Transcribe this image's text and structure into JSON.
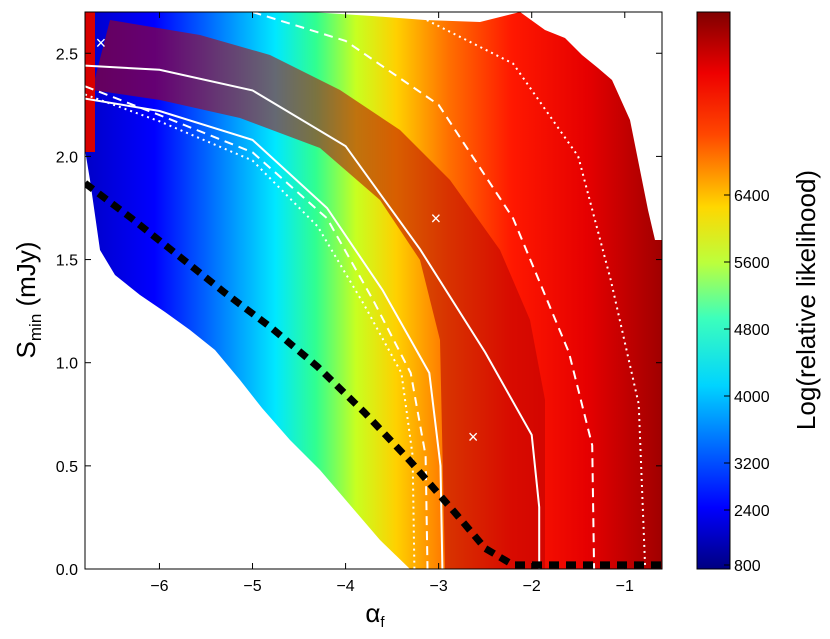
{
  "chart_data": {
    "type": "heatmap",
    "title": "",
    "xlabel": "α",
    "xlabel_sub": "f",
    "ylabel": "S",
    "ylabel_sub": "min",
    "ylabel_unit": " (mJy)",
    "xlim": [
      -6.8,
      -0.6
    ],
    "ylim": [
      0.0,
      2.7
    ],
    "x_ticks": [
      -6,
      -5,
      -4,
      -3,
      -2,
      -1
    ],
    "x_tick_labels": [
      "−6",
      "−5",
      "−4",
      "−3",
      "−2",
      "−1"
    ],
    "y_ticks": [
      0.0,
      0.5,
      1.0,
      1.5,
      2.0,
      2.5
    ],
    "y_tick_labels": [
      "0.0",
      "0.5",
      "1.0",
      "1.5",
      "2.0",
      "2.5"
    ],
    "colorbar": {
      "label": "Log(relative likelihood)",
      "ticks": [
        800,
        2400,
        3200,
        4000,
        4800,
        5600,
        6400
      ],
      "tick_labels": [
        "800",
        "2400",
        "3200",
        "4000",
        "4800",
        "5600",
        "6400"
      ],
      "colormap": "jet"
    },
    "markers": [
      {
        "symbol": "×",
        "x": -6.63,
        "y": 2.55
      },
      {
        "symbol": "×",
        "x": -3.03,
        "y": 1.7
      },
      {
        "symbol": "×",
        "x": -2.63,
        "y": 0.64
      }
    ],
    "boundary_curve": {
      "style": "black dashed",
      "points": [
        [
          -6.8,
          1.87
        ],
        [
          -6.3,
          1.7
        ],
        [
          -5.8,
          1.52
        ],
        [
          -5.3,
          1.34
        ],
        [
          -4.8,
          1.17
        ],
        [
          -4.3,
          0.98
        ],
        [
          -3.8,
          0.76
        ],
        [
          -3.3,
          0.52
        ],
        [
          -2.8,
          0.26
        ],
        [
          -2.5,
          0.1
        ],
        [
          -2.2,
          0.02
        ],
        [
          -0.6,
          0.02
        ]
      ]
    },
    "contours": [
      {
        "style": "white solid",
        "points": [
          [
            -6.8,
            2.44
          ],
          [
            -6.0,
            2.42
          ],
          [
            -5.0,
            2.32
          ],
          [
            -4.0,
            2.05
          ],
          [
            -3.2,
            1.55
          ],
          [
            -2.5,
            1.05
          ],
          [
            -2.0,
            0.65
          ],
          [
            -1.92,
            0.3
          ],
          [
            -1.92,
            0.0
          ]
        ]
      },
      {
        "style": "white dashed",
        "points": [
          [
            -5.0,
            2.7
          ],
          [
            -4.0,
            2.56
          ],
          [
            -3.0,
            2.25
          ],
          [
            -2.2,
            1.7
          ],
          [
            -1.6,
            1.05
          ],
          [
            -1.35,
            0.6
          ],
          [
            -1.33,
            0.0
          ]
        ]
      },
      {
        "style": "white dotted",
        "points": [
          [
            -3.3,
            2.7
          ],
          [
            -2.2,
            2.45
          ],
          [
            -1.5,
            2.0
          ],
          [
            -1.15,
            1.4
          ],
          [
            -0.85,
            0.8
          ],
          [
            -0.78,
            0.0
          ]
        ]
      },
      {
        "style": "white solid",
        "points": [
          [
            -6.8,
            2.28
          ],
          [
            -6.0,
            2.22
          ],
          [
            -5.0,
            2.08
          ],
          [
            -4.2,
            1.75
          ],
          [
            -3.6,
            1.35
          ],
          [
            -3.1,
            0.95
          ],
          [
            -2.98,
            0.5
          ],
          [
            -2.96,
            0.0
          ]
        ]
      },
      {
        "style": "white dashed",
        "points": [
          [
            -6.8,
            2.34
          ],
          [
            -6.0,
            2.2
          ],
          [
            -5.0,
            2.02
          ],
          [
            -4.2,
            1.7
          ],
          [
            -3.7,
            1.3
          ],
          [
            -3.3,
            0.95
          ],
          [
            -3.14,
            0.55
          ],
          [
            -3.12,
            0.0
          ]
        ]
      },
      {
        "style": "white dotted",
        "points": [
          [
            -6.8,
            2.3
          ],
          [
            -6.0,
            2.17
          ],
          [
            -5.0,
            1.98
          ],
          [
            -4.3,
            1.66
          ],
          [
            -3.8,
            1.28
          ],
          [
            -3.4,
            0.95
          ],
          [
            -3.28,
            0.55
          ],
          [
            -3.26,
            0.0
          ]
        ]
      }
    ],
    "grid": false
  }
}
